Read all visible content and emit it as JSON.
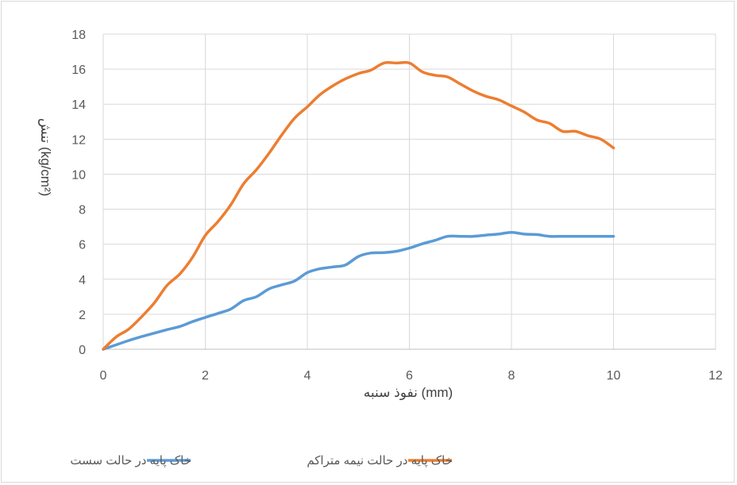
{
  "chart_data": {
    "type": "line",
    "title": "",
    "xlabel": "نفوذ سنبه (mm)",
    "ylabel": "تنش (kg/cm²)",
    "xlim": [
      0,
      12
    ],
    "ylim": [
      0,
      18
    ],
    "xticks": [
      0,
      2,
      4,
      6,
      8,
      10,
      12
    ],
    "yticks": [
      0,
      2,
      4,
      6,
      8,
      10,
      12,
      14,
      16,
      18
    ],
    "grid": true,
    "legend_position": "bottom",
    "series": [
      {
        "name": "خاک پایه در حالت سست",
        "color": "#5b9bd5",
        "x": [
          0,
          0.25,
          0.5,
          0.75,
          1.0,
          1.25,
          1.5,
          1.75,
          2.0,
          2.25,
          2.5,
          2.75,
          3.0,
          3.25,
          3.5,
          3.75,
          4.0,
          4.25,
          4.5,
          4.75,
          5.0,
          5.25,
          5.5,
          5.75,
          6.0,
          6.25,
          6.5,
          6.75,
          7.0,
          7.25,
          7.5,
          7.75,
          8.0,
          8.25,
          8.5,
          8.75,
          9.0,
          9.25,
          9.5,
          9.75,
          10.0
        ],
        "y": [
          0,
          0.25,
          0.5,
          0.72,
          0.92,
          1.12,
          1.3,
          1.58,
          1.82,
          2.05,
          2.3,
          2.78,
          3.0,
          3.45,
          3.68,
          3.9,
          4.38,
          4.6,
          4.7,
          4.82,
          5.3,
          5.5,
          5.52,
          5.6,
          5.78,
          6.02,
          6.22,
          6.45,
          6.45,
          6.45,
          6.52,
          6.58,
          6.68,
          6.58,
          6.55,
          6.45,
          6.45,
          6.45,
          6.45,
          6.45,
          6.45
        ]
      },
      {
        "name": "خاک پایه در حالت نیمه متراکم",
        "color": "#ed7d31",
        "x": [
          0,
          0.25,
          0.5,
          0.75,
          1.0,
          1.25,
          1.5,
          1.75,
          2.0,
          2.25,
          2.5,
          2.75,
          3.0,
          3.25,
          3.5,
          3.75,
          4.0,
          4.25,
          4.5,
          4.75,
          5.0,
          5.25,
          5.5,
          5.75,
          6.0,
          6.25,
          6.5,
          6.75,
          7.0,
          7.25,
          7.5,
          7.75,
          8.0,
          8.25,
          8.5,
          8.75,
          9.0,
          9.25,
          9.5,
          9.75,
          10.0
        ],
        "y": [
          0,
          0.7,
          1.15,
          1.85,
          2.65,
          3.65,
          4.3,
          5.25,
          6.5,
          7.3,
          8.25,
          9.45,
          10.25,
          11.2,
          12.25,
          13.2,
          13.85,
          14.55,
          15.05,
          15.45,
          15.75,
          15.95,
          16.35,
          16.35,
          16.35,
          15.85,
          15.65,
          15.55,
          15.15,
          14.75,
          14.45,
          14.25,
          13.9,
          13.55,
          13.1,
          12.9,
          12.45,
          12.45,
          12.2,
          12.0,
          11.5
        ]
      }
    ]
  }
}
